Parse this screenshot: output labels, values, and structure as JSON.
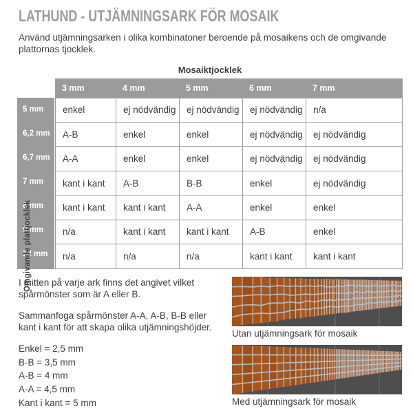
{
  "page": {
    "title": "LATHUND - UTJÄMNINGSARK FÖR MOSAIK",
    "intro": "Använd utjämningsarken i olika kombinatoner beroende på mosaikens och de omgivande plattornas tjocklek."
  },
  "table": {
    "column_group_label": "Mosaiktjocklek",
    "row_group_label": "Omgivande plattjocklek",
    "columns": [
      "3 mm",
      "4 mm",
      "5 mm",
      "6 mm",
      "7 mm"
    ],
    "rows": [
      {
        "label": "5 mm",
        "cells": [
          "enkel",
          "ej nödvändig",
          "ej nödvändig",
          "ej nödvändig",
          "n/a"
        ]
      },
      {
        "label": "6,2 mm",
        "cells": [
          "A-B",
          "enkel",
          "enkel",
          "ej nödvändig",
          "ej nödvändig"
        ]
      },
      {
        "label": "6,7 mm",
        "cells": [
          "A-A",
          "enkel",
          "enkel",
          "ej nödvändig",
          "ej nödvändig"
        ]
      },
      {
        "label": "7 mm",
        "cells": [
          "kant i kant",
          "A-B",
          "B-B",
          "enkel",
          "ej nödvändig"
        ]
      },
      {
        "label": "8 mm",
        "cells": [
          "kant i kant",
          "kant i kant",
          "A-A",
          "enkel",
          "enkel"
        ]
      },
      {
        "label": "9 mm",
        "cells": [
          "n/a",
          "kant i kant",
          "kant i kant",
          "A-B",
          "enkel"
        ]
      },
      {
        "label": "12 mm",
        "cells": [
          "n/a",
          "n/a",
          "n/a",
          "kant i kant",
          "kant i kant"
        ]
      }
    ]
  },
  "notes": {
    "para1": "I mitten på varje ark finns det angivet vilket spårmönster som är A eller B.",
    "para2": "Sammanfoga spårmönster A-A, A-B, B-B eller kant i kant för att skapa olika utjämningshöjder.",
    "legend": [
      "Enkel = 2,5 mm",
      "B-B = 3,5 mm",
      "A-B = 4 mm",
      "A-A = 4,5 mm",
      "Kant i kant = 5 mm"
    ]
  },
  "figures": [
    {
      "caption": "Utan utjämningsark för mosaik",
      "style": "uneven"
    },
    {
      "caption": "Med utjämningsark för mosaik",
      "style": "even"
    }
  ],
  "colors": {
    "header_gray": "#9b9b9b",
    "title_gray": "#9c9c9c",
    "text_dark": "#3d3d3d",
    "tile_orange": "#a8551c",
    "grout": "#b6bfc6",
    "wall_dark": "#4e4e4e"
  }
}
